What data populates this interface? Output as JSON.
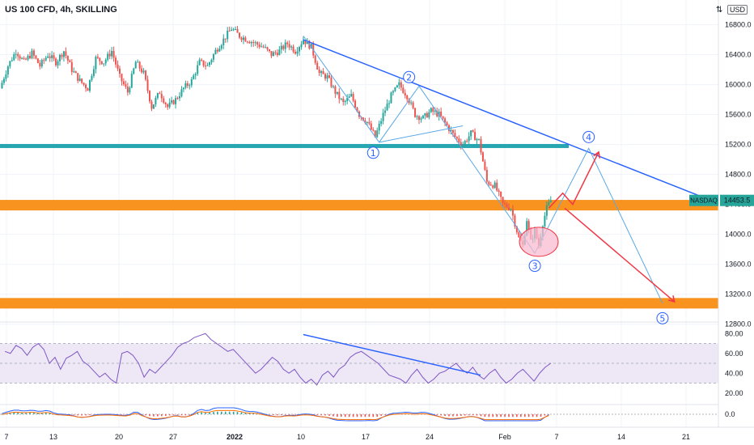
{
  "header": {
    "symbol": "US 100 CFD, 4h, SKILLING",
    "currency": "USD",
    "currency_icon": "⇅"
  },
  "colors": {
    "up": "#26a69a",
    "down": "#ef5350",
    "orange": "#f7931e",
    "teal": "#26a6b0",
    "blue_line": "#2962ff",
    "wave_line": "#5aa9e6",
    "arrow_red": "#f23645",
    "circle_fill": "#f8bbd0",
    "rsi": "#7e57c2",
    "rsi_band": "#ede7f6"
  },
  "chart_data": [
    {
      "type": "candlestick",
      "title": "",
      "yaxis_ticks": [
        12800.0,
        13200.0,
        13600.0,
        14000.0,
        14400.0,
        14800.0,
        15200.0,
        15600.0,
        16000.0,
        16400.0,
        16800.0
      ],
      "yaxis_tick_labels": [
        "12800.0",
        "13200.0",
        "13600.0",
        "14000.0",
        "14400.0",
        "14800.0",
        "15200.0",
        "15600.0",
        "16000.0",
        "16400.0",
        "16800.0"
      ],
      "xaxis_labels": [
        "7",
        "13",
        "20",
        "27",
        "2022",
        "10",
        "17",
        "24",
        "Feb",
        "7",
        "14",
        "21"
      ],
      "price_label": {
        "symbol": "NASDAQ",
        "value": "14453.5"
      },
      "close_path": [
        [
          0,
          15950
        ],
        [
          4,
          16250
        ],
        [
          8,
          16450
        ],
        [
          12,
          16300
        ],
        [
          16,
          16420
        ],
        [
          20,
          16250
        ],
        [
          24,
          16400
        ],
        [
          28,
          16300
        ],
        [
          32,
          16450
        ],
        [
          36,
          16200
        ],
        [
          40,
          16050
        ],
        [
          44,
          15950
        ],
        [
          48,
          16350
        ],
        [
          52,
          16300
        ],
        [
          56,
          16450
        ],
        [
          60,
          16100
        ],
        [
          64,
          15900
        ],
        [
          68,
          16300
        ],
        [
          72,
          16150
        ],
        [
          76,
          15700
        ],
        [
          80,
          15900
        ],
        [
          84,
          15700
        ],
        [
          88,
          15800
        ],
        [
          92,
          15950
        ],
        [
          96,
          16050
        ],
        [
          100,
          16300
        ],
        [
          104,
          16250
        ],
        [
          108,
          16450
        ],
        [
          112,
          16600
        ],
        [
          116,
          16750
        ],
        [
          120,
          16650
        ],
        [
          124,
          16600
        ],
        [
          128,
          16550
        ],
        [
          132,
          16500
        ],
        [
          136,
          16400
        ],
        [
          140,
          16450
        ],
        [
          144,
          16550
        ],
        [
          148,
          16450
        ],
        [
          152,
          16600
        ],
        [
          156,
          16500
        ],
        [
          160,
          16150
        ],
        [
          164,
          16100
        ],
        [
          168,
          15900
        ],
        [
          172,
          15750
        ],
        [
          176,
          15850
        ],
        [
          180,
          15600
        ],
        [
          184,
          15500
        ],
        [
          188,
          15300
        ],
        [
          192,
          15600
        ],
        [
          196,
          15850
        ],
        [
          200,
          16000
        ],
        [
          204,
          15850
        ],
        [
          208,
          15600
        ],
        [
          212,
          15550
        ],
        [
          216,
          15650
        ],
        [
          220,
          15600
        ],
        [
          224,
          15450
        ],
        [
          228,
          15300
        ],
        [
          232,
          15200
        ],
        [
          236,
          15350
        ],
        [
          240,
          15250
        ],
        [
          244,
          14700
        ],
        [
          248,
          14650
        ],
        [
          252,
          14400
        ],
        [
          256,
          14350
        ],
        [
          260,
          13950
        ],
        [
          262,
          13850
        ],
        [
          264,
          14200
        ],
        [
          266,
          13900
        ],
        [
          268,
          14050
        ],
        [
          270,
          13850
        ],
        [
          272,
          14150
        ],
        [
          274,
          14350
        ],
        [
          276,
          14450
        ]
      ],
      "horizontal_levels": [
        {
          "name": "teal-resistance",
          "y": 15180,
          "color": "#26a6b0"
        },
        {
          "name": "orange-support-upper",
          "y": 14390,
          "color": "#f7931e"
        },
        {
          "name": "orange-support-lower",
          "y": 13080,
          "color": "#f7931e"
        }
      ],
      "trendline": {
        "from": [
          152,
          16600
        ],
        "to": [
          350,
          14520
        ]
      },
      "wave_labels": [
        {
          "label": "1",
          "x": 187,
          "y": 15090
        },
        {
          "label": "2",
          "x": 205,
          "y": 16100
        },
        {
          "label": "3",
          "x": 268,
          "y": 13580
        },
        {
          "label": "4",
          "x": 295,
          "y": 15300
        },
        {
          "label": "5",
          "x": 332,
          "y": 12880
        }
      ]
    },
    {
      "type": "line",
      "title": "",
      "yaxis_ticks": [
        20,
        40,
        60,
        80
      ],
      "yaxis_tick_labels": [
        "20.00",
        "40.00",
        "60.00",
        "80.00"
      ],
      "band": [
        30,
        70
      ],
      "values": [
        62,
        60,
        68,
        65,
        58,
        66,
        70,
        64,
        50,
        56,
        44,
        55,
        58,
        62,
        52,
        48,
        42,
        36,
        40,
        34,
        30,
        60,
        62,
        58,
        50,
        36,
        44,
        40,
        46,
        52,
        58,
        66,
        70,
        72,
        76,
        78,
        80,
        74,
        70,
        66,
        62,
        64,
        58,
        52,
        46,
        40,
        44,
        50,
        56,
        52,
        44,
        40,
        44,
        36,
        30,
        34,
        28,
        38,
        42,
        36,
        44,
        48,
        56,
        60,
        62,
        58,
        54,
        50,
        44,
        38,
        36,
        34,
        30,
        38,
        44,
        36,
        30,
        34,
        40,
        42,
        46,
        50,
        44,
        40,
        46,
        38,
        34,
        40,
        44,
        36,
        30,
        34,
        40,
        44,
        38,
        32,
        40,
        46,
        50
      ],
      "trendline": {
        "from": [
          0,
          79
        ],
        "to": [
          1,
          38
        ]
      }
    },
    {
      "type": "line",
      "title": "",
      "yaxis_ticks": [
        0.0
      ],
      "yaxis_tick_labels": [
        "0.0"
      ]
    }
  ]
}
